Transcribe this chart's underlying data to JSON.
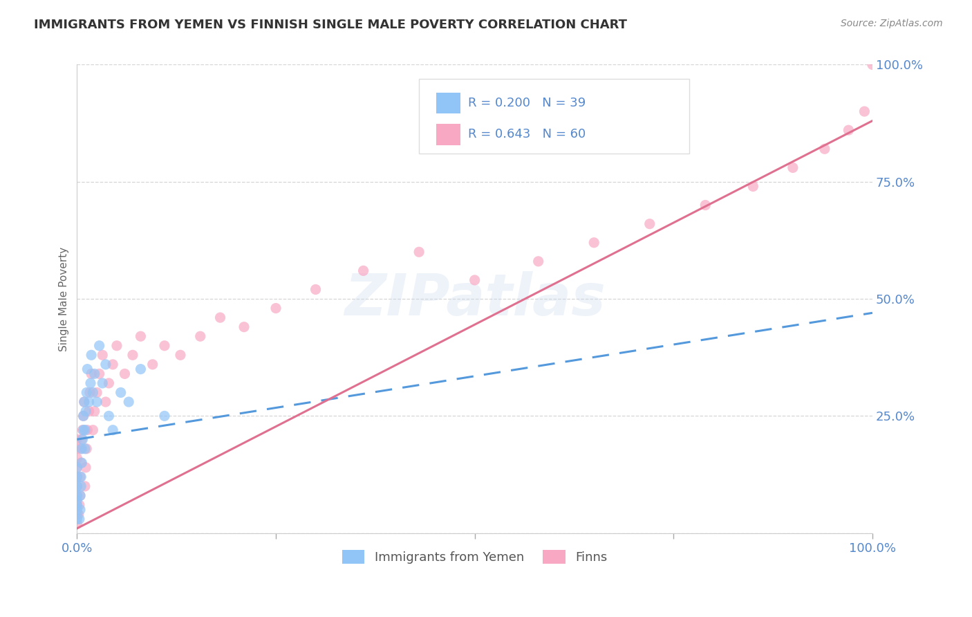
{
  "title": "IMMIGRANTS FROM YEMEN VS FINNISH SINGLE MALE POVERTY CORRELATION CHART",
  "source": "Source: ZipAtlas.com",
  "ylabel": "Single Male Poverty",
  "legend_label_1": "Immigrants from Yemen",
  "legend_label_2": "Finns",
  "r1": 0.2,
  "n1": 39,
  "r2": 0.643,
  "n2": 60,
  "color1": "#92C5F7",
  "color2": "#F9A8C4",
  "line_color1": "#5599DD",
  "line_color2": "#E07090",
  "xlim": [
    0,
    1
  ],
  "ylim": [
    0,
    1
  ],
  "yticks": [
    0.0,
    0.25,
    0.5,
    0.75,
    1.0
  ],
  "ytick_labels": [
    "",
    "25.0%",
    "50.0%",
    "75.0%",
    "100.0%"
  ],
  "xticks": [
    0.0,
    0.25,
    0.5,
    0.75,
    1.0
  ],
  "xtick_labels": [
    "0.0%",
    "",
    "",
    "",
    "100.0%"
  ],
  "watermark": "ZIPatlas",
  "background_color": "#ffffff",
  "grid_color": "#cccccc",
  "title_color": "#333333",
  "tick_label_color": "#5588cc",
  "trend_line1_x0": 0.0,
  "trend_line1_y0": 0.2,
  "trend_line1_x1": 1.0,
  "trend_line1_y1": 0.47,
  "trend_line2_x0": 0.0,
  "trend_line2_y0": 0.01,
  "trend_line2_x1": 1.0,
  "trend_line2_y1": 0.88,
  "scatter1_x": [
    0.0,
    0.0,
    0.0,
    0.0,
    0.0,
    0.0,
    0.0,
    0.0,
    0.003,
    0.004,
    0.004,
    0.005,
    0.005,
    0.006,
    0.006,
    0.007,
    0.008,
    0.008,
    0.009,
    0.01,
    0.01,
    0.011,
    0.012,
    0.013,
    0.015,
    0.017,
    0.018,
    0.02,
    0.022,
    0.025,
    0.028,
    0.032,
    0.036,
    0.04,
    0.045,
    0.055,
    0.065,
    0.08,
    0.11
  ],
  "scatter1_y": [
    0.03,
    0.05,
    0.06,
    0.07,
    0.08,
    0.1,
    0.12,
    0.14,
    0.03,
    0.05,
    0.08,
    0.1,
    0.12,
    0.15,
    0.18,
    0.2,
    0.22,
    0.25,
    0.28,
    0.18,
    0.22,
    0.26,
    0.3,
    0.35,
    0.28,
    0.32,
    0.38,
    0.3,
    0.34,
    0.28,
    0.4,
    0.32,
    0.36,
    0.25,
    0.22,
    0.3,
    0.28,
    0.35,
    0.25
  ],
  "scatter2_x": [
    0.0,
    0.0,
    0.0,
    0.0,
    0.0,
    0.0,
    0.0,
    0.0,
    0.0,
    0.0,
    0.002,
    0.003,
    0.004,
    0.004,
    0.005,
    0.005,
    0.006,
    0.007,
    0.008,
    0.009,
    0.01,
    0.011,
    0.012,
    0.013,
    0.015,
    0.016,
    0.018,
    0.02,
    0.022,
    0.025,
    0.028,
    0.032,
    0.036,
    0.04,
    0.045,
    0.05,
    0.06,
    0.07,
    0.08,
    0.095,
    0.11,
    0.13,
    0.155,
    0.18,
    0.21,
    0.25,
    0.3,
    0.36,
    0.43,
    0.5,
    0.58,
    0.65,
    0.72,
    0.79,
    0.85,
    0.9,
    0.94,
    0.97,
    0.99,
    1.0
  ],
  "scatter2_y": [
    0.02,
    0.04,
    0.06,
    0.08,
    0.1,
    0.12,
    0.14,
    0.16,
    0.18,
    0.2,
    0.04,
    0.06,
    0.08,
    0.12,
    0.15,
    0.18,
    0.2,
    0.22,
    0.25,
    0.28,
    0.1,
    0.14,
    0.18,
    0.22,
    0.26,
    0.3,
    0.34,
    0.22,
    0.26,
    0.3,
    0.34,
    0.38,
    0.28,
    0.32,
    0.36,
    0.4,
    0.34,
    0.38,
    0.42,
    0.36,
    0.4,
    0.38,
    0.42,
    0.46,
    0.44,
    0.48,
    0.52,
    0.56,
    0.6,
    0.54,
    0.58,
    0.62,
    0.66,
    0.7,
    0.74,
    0.78,
    0.82,
    0.86,
    0.9,
    1.0
  ]
}
